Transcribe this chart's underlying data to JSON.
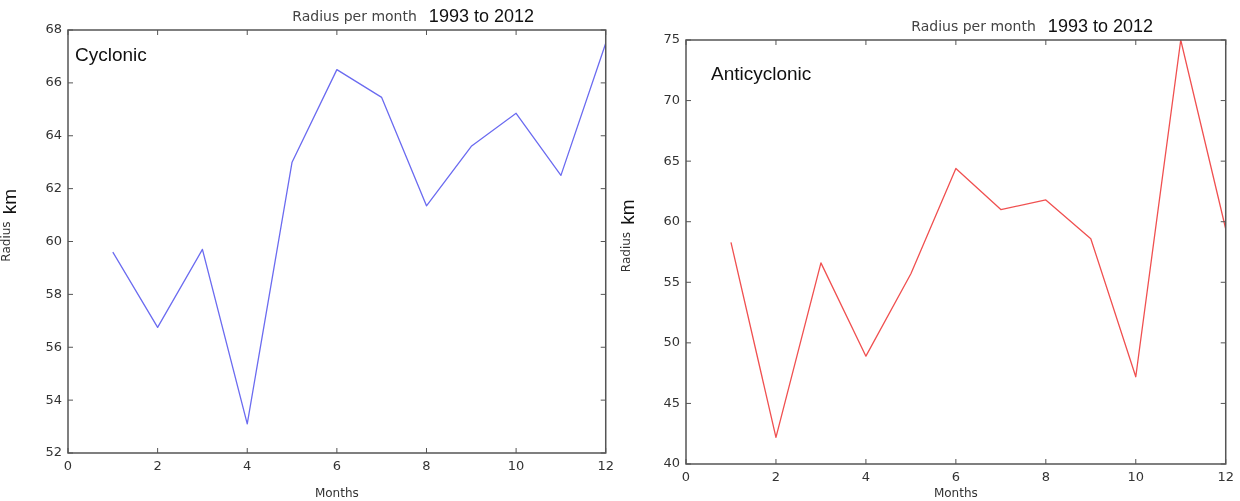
{
  "chart_data": [
    {
      "type": "line",
      "title": "Radius per month",
      "subtitle": "1993 to 2012",
      "xlabel": "Months",
      "ylabel": "Radius",
      "annotations": [
        "Cyclonic",
        "km"
      ],
      "x": [
        1,
        2,
        3,
        4,
        5,
        6,
        7,
        8,
        9,
        10,
        11,
        12
      ],
      "series": [
        {
          "color": "#6b6bf0",
          "values": [
            59.6,
            56.75,
            59.7,
            53.1,
            63.0,
            66.5,
            65.45,
            61.35,
            63.6,
            64.85,
            62.5,
            67.5
          ]
        }
      ],
      "xlim": [
        0,
        12
      ],
      "xticks": [
        0,
        2,
        4,
        6,
        8,
        10,
        12
      ],
      "ylim": [
        52,
        68
      ],
      "yticks": [
        52,
        54,
        56,
        58,
        60,
        62,
        64,
        66,
        68
      ],
      "grid": false,
      "legend": false,
      "marker": "none",
      "line_style": "solid"
    },
    {
      "type": "line",
      "title": "Radius per month",
      "subtitle": "1993 to 2012",
      "xlabel": "Months",
      "ylabel": "Radius",
      "annotations": [
        "Anticyclonic",
        "km"
      ],
      "x": [
        1,
        2,
        3,
        4,
        5,
        6,
        7,
        8,
        9,
        10,
        11,
        12
      ],
      "series": [
        {
          "color": "#f05050",
          "values": [
            58.3,
            42.2,
            56.6,
            48.9,
            55.7,
            64.4,
            61.0,
            61.8,
            58.6,
            47.2,
            75.0,
            59.4
          ]
        }
      ],
      "xlim": [
        0,
        12
      ],
      "xticks": [
        0,
        2,
        4,
        6,
        8,
        10,
        12
      ],
      "ylim": [
        40,
        75
      ],
      "yticks": [
        40,
        45,
        50,
        55,
        60,
        65,
        70,
        75
      ],
      "grid": false,
      "legend": false,
      "marker": "none",
      "line_style": "solid"
    }
  ]
}
